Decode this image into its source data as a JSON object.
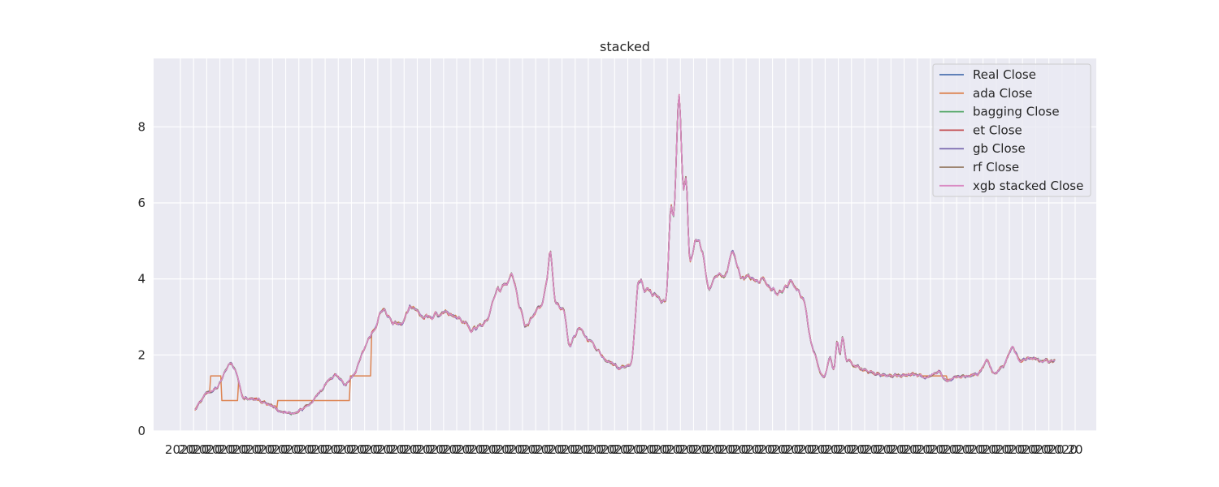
{
  "chart_data": {
    "type": "line",
    "title": "stacked",
    "xlabel": "",
    "ylabel": "",
    "ylim": [
      0,
      9.8
    ],
    "yticks": [
      0,
      2,
      4,
      6,
      8
    ],
    "grid": true,
    "legend_placement": "top-right",
    "background": "#eaeaf2",
    "x_tick_labels_overlapping": "2020",
    "x_tick_label_last": "20",
    "series": [
      {
        "name": "Real Close",
        "color": "#4c72b0"
      },
      {
        "name": "ada Close",
        "color": "#dd8452"
      },
      {
        "name": "bagging Close",
        "color": "#55a868"
      },
      {
        "name": "et Close",
        "color": "#c44e52"
      },
      {
        "name": "gb Close",
        "color": "#8172b3"
      },
      {
        "name": "rf Close",
        "color": "#937860"
      },
      {
        "name": "xgb stacked Close",
        "color": "#da8bc3"
      }
    ],
    "n_points": 770,
    "profile": [
      [
        0,
        0.55
      ],
      [
        8,
        1.0
      ],
      [
        15,
        0.95
      ],
      [
        22,
        1.1
      ],
      [
        30,
        1.2
      ],
      [
        38,
        1.55
      ],
      [
        45,
        1.85
      ],
      [
        52,
        1.4
      ],
      [
        60,
        1.45
      ],
      [
        66,
        0.85
      ],
      [
        75,
        1.0
      ],
      [
        85,
        0.9
      ],
      [
        95,
        0.75
      ],
      [
        105,
        0.8
      ],
      [
        115,
        0.55
      ],
      [
        125,
        0.5
      ],
      [
        135,
        0.42
      ],
      [
        145,
        0.5
      ],
      [
        155,
        0.55
      ],
      [
        162,
        0.7
      ],
      [
        170,
        1.0
      ],
      [
        178,
        1.05
      ],
      [
        188,
        1.3
      ],
      [
        196,
        1.5
      ],
      [
        204,
        1.25
      ],
      [
        210,
        1.2
      ],
      [
        218,
        1.5
      ],
      [
        225,
        1.6
      ],
      [
        232,
        2.1
      ],
      [
        240,
        2.3
      ],
      [
        248,
        2.4
      ],
      [
        255,
        2.8
      ],
      [
        262,
        3.25
      ],
      [
        270,
        2.85
      ],
      [
        278,
        3.0
      ],
      [
        286,
        2.7
      ],
      [
        294,
        3.0
      ],
      [
        302,
        3.35
      ],
      [
        310,
        2.8
      ],
      [
        318,
        3.0
      ],
      [
        326,
        2.85
      ],
      [
        334,
        3.1
      ],
      [
        342,
        3.0
      ],
      [
        350,
        3.1
      ],
      [
        358,
        2.95
      ],
      [
        366,
        3.25
      ],
      [
        374,
        2.8
      ],
      [
        382,
        2.6
      ],
      [
        390,
        2.9
      ],
      [
        398,
        2.7
      ],
      [
        406,
        2.75
      ],
      [
        414,
        3.1
      ],
      [
        422,
        3.7
      ],
      [
        428,
        3.3
      ],
      [
        436,
        3.9
      ],
      [
        442,
        4.2
      ],
      [
        448,
        3.3
      ],
      [
        454,
        3.4
      ],
      [
        460,
        2.7
      ],
      [
        466,
        3.0
      ],
      [
        472,
        3.2
      ],
      [
        478,
        2.9
      ],
      [
        484,
        3.3
      ],
      [
        490,
        3.6
      ],
      [
        496,
        4.8
      ],
      [
        500,
        3.4
      ],
      [
        506,
        3.2
      ],
      [
        512,
        3.3
      ],
      [
        518,
        2.3
      ],
      [
        524,
        2.2
      ],
      [
        530,
        2.8
      ],
      [
        538,
        2.5
      ],
      [
        546,
        2.3
      ],
      [
        554,
        2.35
      ],
      [
        562,
        2.0
      ],
      [
        570,
        1.8
      ],
      [
        578,
        1.85
      ],
      [
        586,
        1.6
      ],
      [
        594,
        1.7
      ],
      [
        602,
        1.9
      ],
      [
        608,
        3.9
      ],
      [
        614,
        4.1
      ],
      [
        620,
        3.6
      ],
      [
        626,
        3.8
      ],
      [
        632,
        3.4
      ],
      [
        638,
        3.9
      ],
      [
        644,
        3.3
      ],
      [
        650,
        3.2
      ],
      [
        654,
        3.5
      ],
      [
        660,
        6.2
      ],
      [
        664,
        5.3
      ],
      [
        668,
        9.35
      ],
      [
        672,
        8.0
      ],
      [
        676,
        4.6
      ],
      [
        680,
        6.7
      ],
      [
        684,
        4.2
      ],
      [
        690,
        4.6
      ],
      [
        696,
        5.3
      ],
      [
        702,
        4.7
      ],
      [
        708,
        5.0
      ],
      [
        714,
        4.4
      ],
      [
        720,
        4.6
      ]
    ]
  }
}
